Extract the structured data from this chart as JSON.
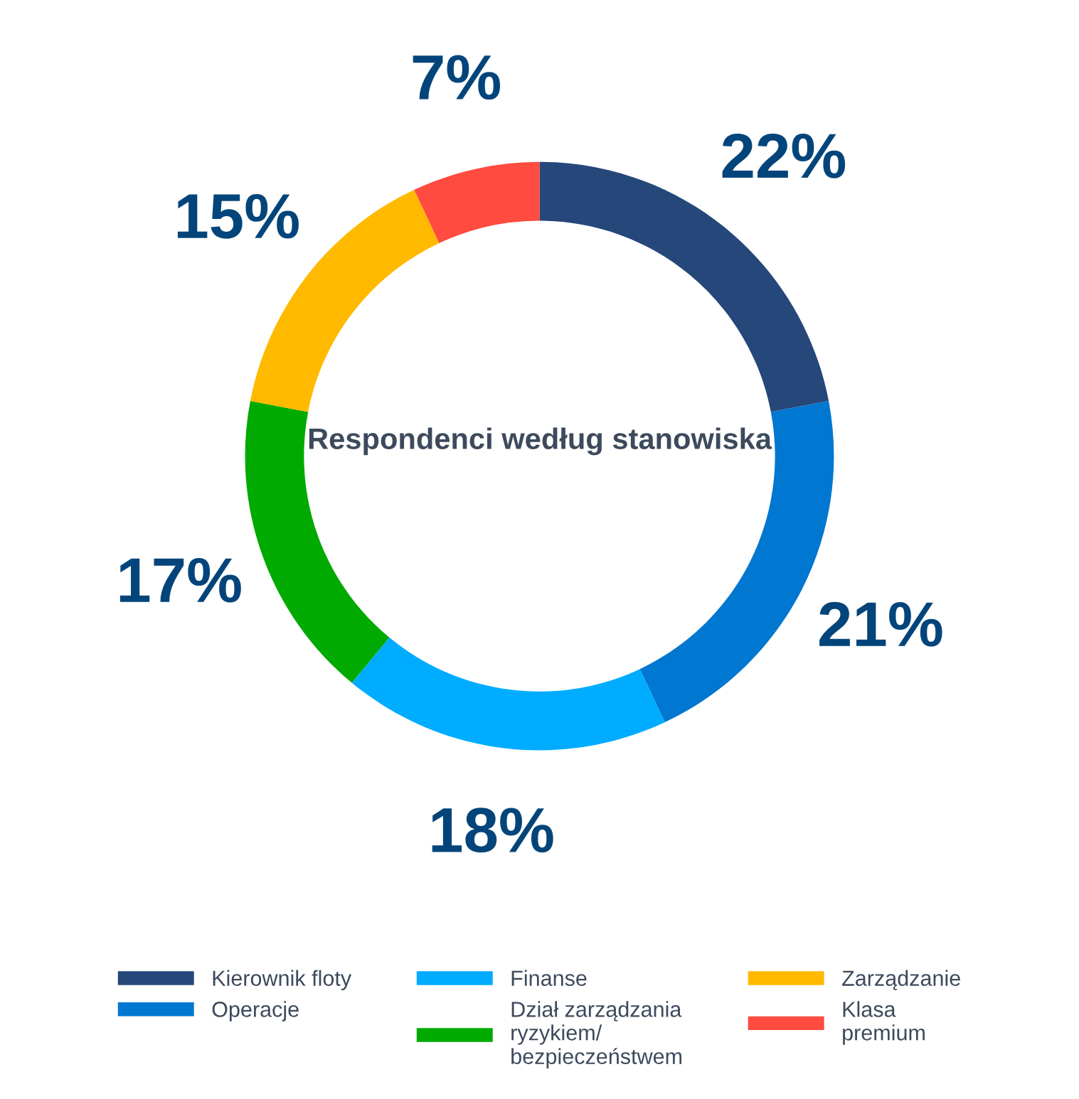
{
  "chart_data": {
    "type": "donut",
    "title": "Respondenci według stanowiska",
    "categories": [
      "Kierownik floty",
      "Operacje",
      "Finanse",
      "Dział zarządzania\nryzykiem/\nbezpieczeństwem",
      "Zarządzanie",
      "Klasa\npremium"
    ],
    "values": [
      22,
      21,
      18,
      17,
      15,
      7
    ],
    "colors": [
      "#26477a",
      "#0077d0",
      "#00acff",
      "#00aa00",
      "#ffba00",
      "#ff4b40"
    ],
    "value_labels": [
      "22%",
      "21%",
      "18%",
      "17%",
      "15%",
      "7%"
    ],
    "legend": "bottom"
  }
}
